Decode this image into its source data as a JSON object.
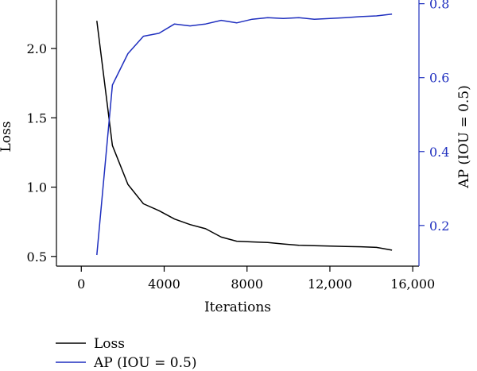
{
  "chart_data": {
    "type": "line",
    "xlabel": "Iterations",
    "ylabel_left": "Loss",
    "ylabel_right": "AP (IOU = 0.5)",
    "xlim": [
      -1200,
      16300
    ],
    "ylim_left": [
      0.43,
      2.35
    ],
    "ylim_right": [
      0.09,
      0.81
    ],
    "x_ticks": [
      0,
      4000,
      8000,
      12000,
      16000
    ],
    "x_tick_labels": [
      "0",
      "4000",
      "8000",
      "12,000",
      "16,000"
    ],
    "y_left_ticks": [
      0.5,
      1.0,
      1.5,
      2.0
    ],
    "y_left_tick_labels": [
      "0.5",
      "1.0",
      "1.5",
      "2.0"
    ],
    "y_right_ticks": [
      0.2,
      0.4,
      0.6,
      0.8
    ],
    "y_right_tick_labels": [
      "0.2",
      "0.4",
      "0.6",
      "0.8"
    ],
    "grid": false,
    "legend_position": "bottom-left",
    "series": [
      {
        "name": "Loss",
        "axis": "left",
        "color": "#000000",
        "x": [
          750,
          1500,
          2250,
          3000,
          3750,
          4500,
          5250,
          6000,
          6750,
          7500,
          8250,
          9000,
          9750,
          10500,
          11250,
          12000,
          12750,
          13500,
          14250,
          15000
        ],
        "y": [
          2.2,
          1.3,
          1.02,
          0.88,
          0.83,
          0.77,
          0.73,
          0.7,
          0.64,
          0.61,
          0.605,
          0.6,
          0.59,
          0.58,
          0.578,
          0.575,
          0.572,
          0.57,
          0.565,
          0.545
        ]
      },
      {
        "name": "AP (IOU = 0.5)",
        "axis": "right",
        "color": "#1f2fbf",
        "x": [
          750,
          1500,
          2250,
          3000,
          3750,
          4500,
          5250,
          6000,
          6750,
          7500,
          8250,
          9000,
          9750,
          10500,
          11250,
          12000,
          12750,
          13500,
          14250,
          15000
        ],
        "y": [
          0.12,
          0.58,
          0.665,
          0.712,
          0.72,
          0.745,
          0.74,
          0.745,
          0.755,
          0.748,
          0.758,
          0.762,
          0.76,
          0.762,
          0.758,
          0.76,
          0.762,
          0.765,
          0.767,
          0.772
        ]
      }
    ]
  }
}
